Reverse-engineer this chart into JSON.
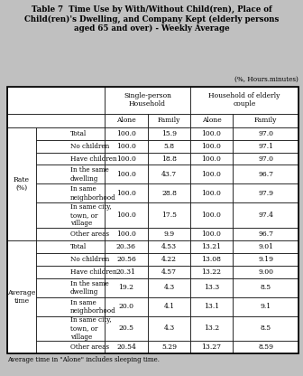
{
  "title": "Table 7  Time Use by With/Without Child(ren), Place of\nChild(ren)'s Dwelling, and Company Kept (elderly persons\naged 65 and over) - Weekly Average",
  "unit_note": "(%, Hours.minutes)",
  "footnote": "Average time in \"Alone\" includes sleeping time.",
  "bg_color": "#c0c0c0",
  "col_headers": [
    "Single-person\nHousehold",
    "Household of elderly\ncouple"
  ],
  "sub_headers": [
    "Alone",
    "Family",
    "Alone",
    "Family"
  ],
  "row_groups": [
    {
      "group_label": "Rate\n(%)",
      "rows": [
        {
          "label": "Total",
          "values": [
            "100.0",
            "15.9",
            "100.0",
            "97.0"
          ]
        },
        {
          "label": "No children",
          "values": [
            "100.0",
            "5.8",
            "100.0",
            "97.1"
          ]
        },
        {
          "label": "Have children",
          "values": [
            "100.0",
            "18.8",
            "100.0",
            "97.0"
          ]
        },
        {
          "label": "In the same\ndwelling",
          "values": [
            "100.0",
            "43.7",
            "100.0",
            "96.7"
          ]
        },
        {
          "label": "In same\nneighborhood",
          "values": [
            "100.0",
            "28.8",
            "100.0",
            "97.9"
          ]
        },
        {
          "label": "In same city,\ntown, or\nvillage",
          "values": [
            "100.0",
            "17.5",
            "100.0",
            "97.4"
          ]
        },
        {
          "label": "Other areas",
          "values": [
            "100.0",
            "9.9",
            "100.0",
            "96.7"
          ]
        }
      ]
    },
    {
      "group_label": "Average\ntime",
      "rows": [
        {
          "label": "Total",
          "values": [
            "20.36",
            "4.53",
            "13.21",
            "9.01"
          ]
        },
        {
          "label": "No children",
          "values": [
            "20.56",
            "4.22",
            "13.08",
            "9.19"
          ]
        },
        {
          "label": "Have children",
          "values": [
            "20.31",
            "4.57",
            "13.22",
            "9.00"
          ]
        },
        {
          "label": "In the same\ndwelling",
          "values": [
            "19.2",
            "4.3",
            "13.3",
            "8.5"
          ]
        },
        {
          "label": "In same\nneighborhood",
          "values": [
            "20.0",
            "4.1",
            "13.1",
            "9.1"
          ]
        },
        {
          "label": "In same city,\ntown, or\nvillage",
          "values": [
            "20.5",
            "4.3",
            "13.2",
            "8.5"
          ]
        },
        {
          "label": "Other areas",
          "values": [
            "20.54",
            "5.29",
            "13.27",
            "8.59"
          ]
        }
      ]
    }
  ]
}
